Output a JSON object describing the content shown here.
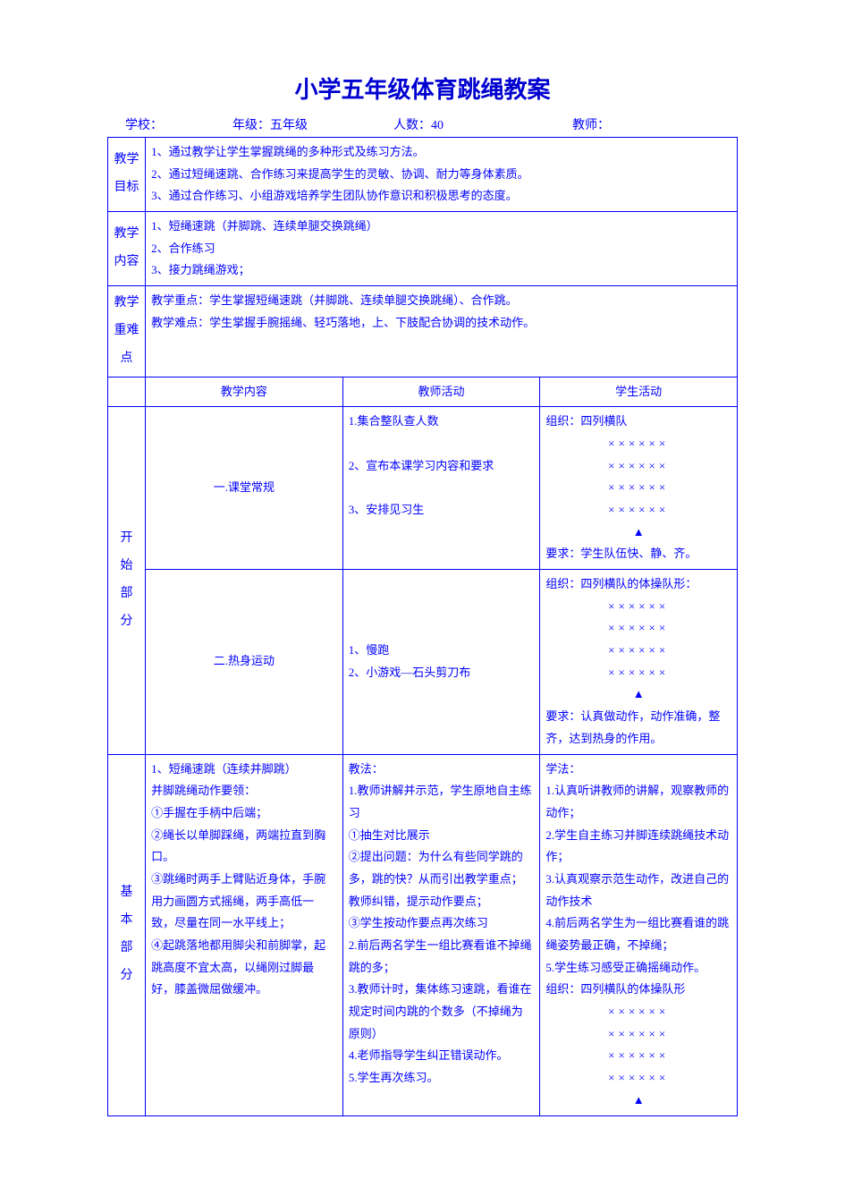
{
  "colors": {
    "text": "#0000ff",
    "border": "#0000ff",
    "title": "#0000d0",
    "bg": "#ffffff"
  },
  "title": "小学五年级体育跳绳教案",
  "meta": {
    "school_label": "学校：",
    "grade_label": "年级：五年级",
    "count_label": "人数：40",
    "teacher_label": "教师："
  },
  "rows_top": [
    {
      "label": "教学\n目标",
      "body": "1、通过教学让学生掌握跳绳的多种形式及练习方法。\n2、通过短绳速跳、合作练习来提高学生的灵敏、协调、耐力等身体素质。\n3、通过合作练习、小组游戏培养学生团队协作意识和积极思考的态度。"
    },
    {
      "label": "教学\n内容",
      "body": "1、短绳速跳（并脚跳、连续单腿交换跳绳）\n2、合作练习\n3、接力跳绳游戏；"
    },
    {
      "label": "教学\n重难点",
      "body": "教学重点：学生掌握短绳速跳（并脚跳、连续单腿交换跳绳）、合作跳。\n教学难点：学生掌握手腕摇绳、轻巧落地，上、下肢配合协调的技术动作。"
    }
  ],
  "headers": {
    "c1": "教学内容",
    "c2": "教师活动",
    "c3": "学生活动"
  },
  "start": {
    "side": "开\n始\n部\n分",
    "s1": {
      "content": "一.课堂常规",
      "teacher": "1.集合整队查人数\n\n2、宣布本课学习内容和要求\n\n3、安排见习生",
      "student_top": "组织：四列横队",
      "formation": "××××××\n××××××\n××××××\n××××××",
      "tri": "▲",
      "student_btm": "要求：学生队伍快、静、齐。"
    },
    "s2": {
      "content": "二.热身运动",
      "teacher": "1、慢跑\n2、小游戏—石头剪刀布",
      "student_top": "组织：四列横队的体操队形：",
      "formation": "××××××\n××××××\n××××××\n××××××",
      "tri": "▲",
      "student_btm": "要求：认真做动作，动作准确，整齐，达到热身的作用。"
    }
  },
  "basic": {
    "side": "基\n本\n部\n分",
    "content": "1、短绳速跳（连续并脚跳）\n并脚跳绳动作要领：\n①手握在手柄中后端；\n②绳长以单脚踩绳，两端拉直到胸口。\n③跳绳时两手上臂贴近身体，手腕用力画圆方式摇绳，两手高低一致，尽量在同一水平线上；\n④起跳落地都用脚尖和前脚掌，起跳高度不宜太高，以绳刚过脚最好，膝盖微屈做缓冲。",
    "teacher": "教法：\n1.教师讲解并示范，学生原地自主练习\n①抽生对比展示\n②提出问题：为什么有些同学跳的多，跳的快？从而引出教学重点；教师纠错，提示动作要点；\n③学生按动作要点再次练习\n2.前后两名学生一组比赛看谁不掉绳跳的多；\n3.教师计时，集体练习速跳，看谁在规定时间内跳的个数多（不掉绳为原则）\n4.老师指导学生纠正错误动作。\n5.学生再次练习。",
    "student_top": "学法：\n1.认真听讲教师的讲解，观察教师的动作；\n2.学生自主练习并脚连续跳绳技术动作；\n3.认真观察示范生动作，改进自己的动作技术\n4.前后两名学生为一组比赛看谁的跳绳姿势最正确，不掉绳；\n5.学生练习感受正确摇绳动作。\n组织：四列横队的体操队形",
    "formation": "××××××\n××××××\n××××××\n××××××",
    "tri": "▲"
  }
}
